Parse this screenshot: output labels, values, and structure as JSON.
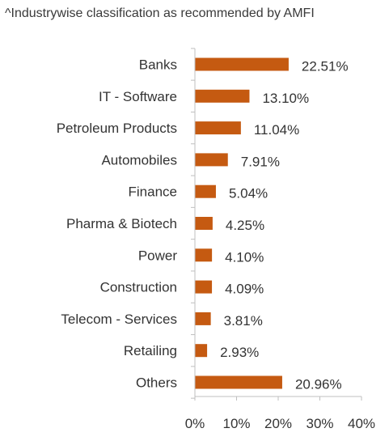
{
  "chart_data": {
    "type": "bar",
    "orientation": "horizontal",
    "title": "",
    "subtitle": "^Industrywise classification as recommended by AMFI",
    "xlabel": "",
    "ylabel": "",
    "categories": [
      "Banks",
      "IT - Software",
      "Petroleum Products",
      "Automobiles",
      "Finance",
      "Pharma & Biotech",
      "Power",
      "Construction",
      "Telecom - Services",
      "Retailing",
      "Others"
    ],
    "values": [
      22.51,
      13.1,
      11.04,
      7.91,
      5.04,
      4.25,
      4.1,
      4.09,
      3.81,
      2.93,
      20.96
    ],
    "data_labels": [
      "22.51%",
      "13.10%",
      "11.04%",
      "7.91%",
      "5.04%",
      "4.25%",
      "4.10%",
      "4.09%",
      "3.81%",
      "2.93%",
      "20.96%"
    ],
    "xlim": [
      0,
      40
    ],
    "x_ticks": [
      0,
      10,
      20,
      30,
      40
    ],
    "x_tick_labels": [
      "0%",
      "10%",
      "20%",
      "30%",
      "40%"
    ],
    "grid": false,
    "legend": "none",
    "bar_color": "#C55A11",
    "axis_color": "#BFBFBF",
    "text_color": "#333333"
  }
}
